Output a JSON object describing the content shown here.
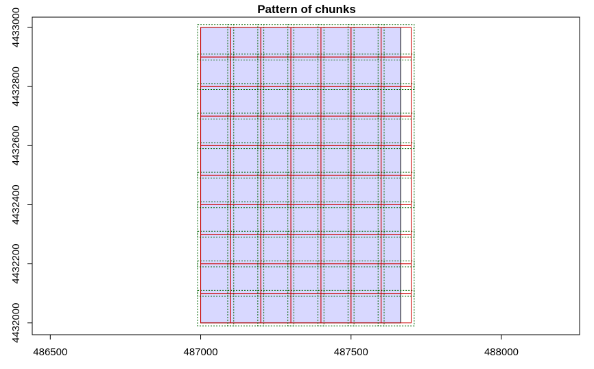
{
  "chart_data": {
    "type": "grid-tiles",
    "title": "Pattern of chunks",
    "xlabel": "",
    "ylabel": "",
    "xlim": [
      486500,
      488000
    ],
    "ylim": [
      4432000,
      4433000
    ],
    "x_ticks": [
      486500,
      487000,
      487500,
      488000
    ],
    "x_tick_labels": [
      "486500",
      "487000",
      "487500",
      "488000"
    ],
    "y_ticks": [
      4432000,
      4432200,
      4432400,
      4432600,
      4432800,
      4433000
    ],
    "y_tick_labels": [
      "4432000",
      "4432200",
      "4432400",
      "4432600",
      "4432800",
      "4433000"
    ],
    "data_extent": {
      "xmin": 487000,
      "xmax": 487665,
      "ymin": 4432000,
      "ymax": 4433000
    },
    "chunk_x_breaks": [
      487000,
      487100,
      487200,
      487300,
      487400,
      487500,
      487600,
      487700
    ],
    "chunk_y_breaks": [
      4432000,
      4432100,
      4432200,
      4432300,
      4432400,
      4432500,
      4432600,
      4432700,
      4432800,
      4432900,
      4433000
    ],
    "buffer": 10,
    "colors": {
      "fill": "#d8d8ff",
      "chunk_border": "#cc0000",
      "buffer_border": "#006400",
      "extent_border": "#000000",
      "frame": "#000000"
    }
  }
}
